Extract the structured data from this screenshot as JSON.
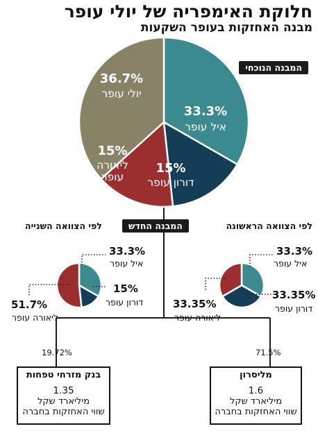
{
  "header": {
    "title": "חלוקת האימפריה של יולי עופר",
    "subtitle": "מבנה האחזקות בעופר השקעות"
  },
  "labels": {
    "current_structure": "המבנה הנוכחי",
    "new_structure": "המבנה החדש",
    "first_will": "לפי הצוואה הראשונה",
    "second_will": "לפי הצוואה השנייה"
  },
  "chart_data": [
    {
      "type": "pie",
      "name": "current",
      "slices": [
        {
          "label": "איל עופר",
          "pct_label": "33.3%",
          "value": 33.3,
          "color": "#3a8a90"
        },
        {
          "label": "דורון עופר",
          "pct_label": "15%",
          "value": 15,
          "color": "#143d57"
        },
        {
          "label": "ליאורה עופר",
          "pct_label": "15%",
          "value": 15,
          "color": "#9b2f2f"
        },
        {
          "label": "יולי עופר",
          "pct_label": "36.7%",
          "value": 36.7,
          "color": "#888267"
        }
      ]
    },
    {
      "type": "pie",
      "name": "first_will",
      "slices": [
        {
          "label": "איל עופר",
          "pct_label": "33.3%",
          "value": 33.3,
          "color": "#3a8a90"
        },
        {
          "label": "דורון עופר",
          "pct_label": "33.35%",
          "value": 33.35,
          "color": "#143d57"
        },
        {
          "label": "ליאורה עופר",
          "pct_label": "33.35%",
          "value": 33.35,
          "color": "#9b2f2f"
        }
      ]
    },
    {
      "type": "pie",
      "name": "second_will",
      "slices": [
        {
          "label": "איל עופר",
          "pct_label": "33.3%",
          "value": 33.3,
          "color": "#3a8a90"
        },
        {
          "label": "דורון עופר",
          "pct_label": "15%",
          "value": 15,
          "color": "#143d57"
        },
        {
          "label": "ליאורה עופר",
          "pct_label": "51.7%",
          "value": 51.7,
          "color": "#9b2f2f"
        }
      ]
    }
  ],
  "companies": {
    "milisron": {
      "share": "71.5%",
      "name": "מליסרון",
      "value": "1.6",
      "unit": "מיליארד שקל",
      "desc": "שווי האחזקות בחברה"
    },
    "mizrahi": {
      "share": "19.72%",
      "name": "בנק מזרחי טפחות",
      "value": "1.35",
      "unit": "מיליארד שקל",
      "desc": "שווי האחזקות בחברה"
    }
  },
  "colors": {
    "line": "#1b1b1b",
    "dots": "#222222"
  }
}
